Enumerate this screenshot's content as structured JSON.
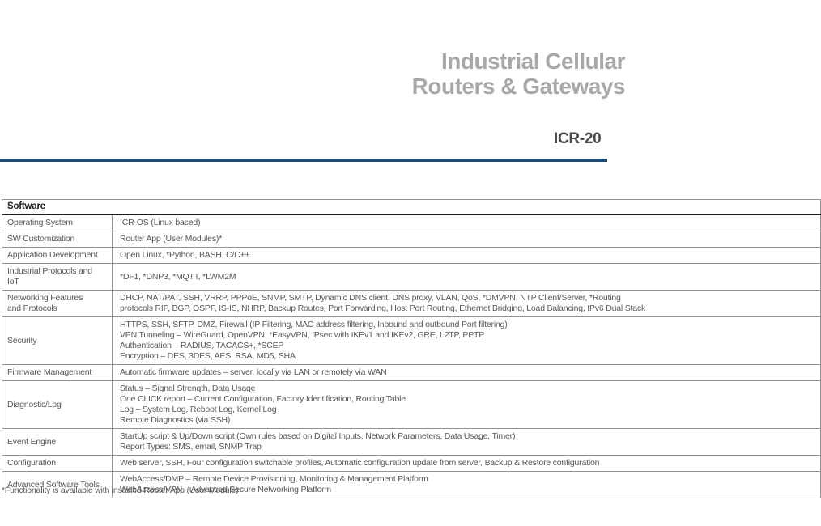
{
  "header": {
    "title_line1": "Industrial Cellular",
    "title_line2": "Routers & Gateways",
    "product": "ICR-20"
  },
  "colors": {
    "title_gray": "#a6a8ab",
    "product_dark": "#4a4b4d",
    "accent_blue": "#1b4a78",
    "table_border": "#8f9193",
    "body_text": "#56575a"
  },
  "table": {
    "section_title": "Software",
    "rows": [
      {
        "label": "Operating System",
        "value": "ICR-OS (Linux based)"
      },
      {
        "label": "SW Customization",
        "value": "Router App (User Modules)*"
      },
      {
        "label": "Application Development",
        "value": "Open Linux, *Python, BASH, C/C++"
      },
      {
        "label": "Industrial Protocols and IoT",
        "value": "*DF1, *DNP3, *MQTT, *LWM2M"
      },
      {
        "label": "Networking Features\nand Protocols",
        "value": "DHCP, NAT/PAT, SSH, VRRP, PPPoE, SNMP, SMTP, Dynamic DNS client, DNS proxy, VLAN, QoS, *DMVPN, NTP Client/Server, *Routing\nprotocols RIP, BGP, OSPF, IS-IS, NHRP, Backup Routes, Port Forwarding, Host Port Routing, Ethernet Bridging, Load Balancing, IPv6 Dual Stack"
      },
      {
        "label": "Security",
        "value": "HTTPS, SSH, SFTP, DMZ, Firewall (IP Filtering, MAC address filtering, Inbound and outbound Port filtering)\nVPN Tunneling – WireGuard, OpenVPN, *EasyVPN, IPsec with IKEv1 and IKEv2, GRE, L2TP, PPTP\nAuthentication – RADIUS, TACACS+, *SCEP\nEncryption – DES, 3DES, AES, RSA, MD5, SHA"
      },
      {
        "label": "Firmware Management",
        "value": "Automatic firmware updates – server, locally via LAN or remotely via WAN"
      },
      {
        "label": "Diagnostic/Log",
        "value": "Status – Signal Strength, Data Usage\nOne CLICK report – Current Configuration, Factory Identification, Routing Table\nLog – System Log, Reboot Log, Kernel Log\nRemote Diagnostics (via SSH)"
      },
      {
        "label": "Event Engine",
        "value": "StartUp script & Up/Down script (Own rules based on Digital Inputs, Network Parameters, Data Usage, Timer)\nReport Types: SMS, email, SNMP Trap"
      },
      {
        "label": "Configuration",
        "value": "Web server, SSH, Four configuration switchable profiles, Automatic configuration update from server, Backup & Restore configuration"
      },
      {
        "label": "Advanced Software Tools",
        "value": "WebAccess/DMP – Remote Device Provisioning, Monitoring & Management Platform\nWebAccess/VPN – Advanced Secure Networking Platform"
      }
    ]
  },
  "footnote": "*Functionality is available with installed Router App (User Module)"
}
